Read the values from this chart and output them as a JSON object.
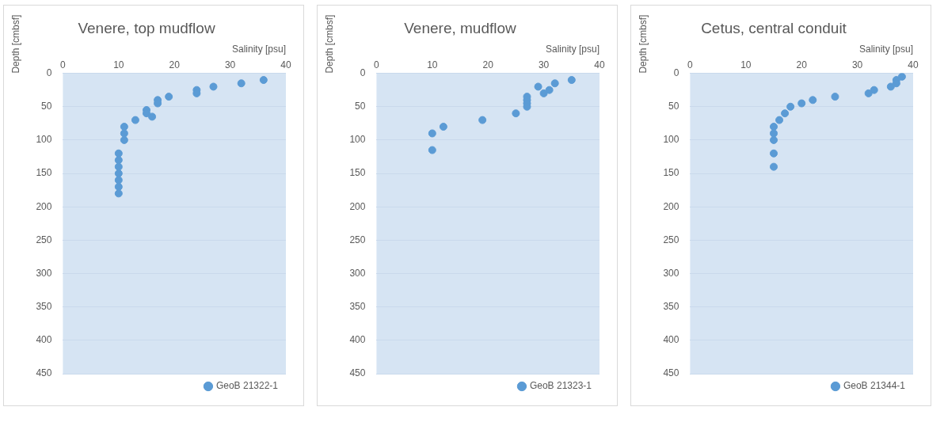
{
  "chart_data": [
    {
      "type": "scatter",
      "title": "Venere, top mudflow",
      "xlabel": "Salinity [psu]",
      "ylabel": "Depth [cmbsf]",
      "xlim": [
        0,
        40
      ],
      "xticks": [
        0,
        10,
        20,
        30,
        40
      ],
      "ylim": [
        450,
        0
      ],
      "yticks": [
        0,
        50,
        100,
        150,
        200,
        250,
        300,
        350,
        400,
        450
      ],
      "grid": "y",
      "legend": "bottom right",
      "marker": "circle",
      "series": [
        {
          "name": "GeoB 21322-1",
          "color": "#5b9bd5",
          "x": [
            36,
            32,
            27,
            24,
            24,
            19,
            17,
            17,
            15,
            15,
            16,
            13,
            11,
            11,
            11,
            10,
            10,
            10,
            10,
            10,
            10,
            10
          ],
          "values": [
            10,
            15,
            20,
            25,
            30,
            35,
            40,
            45,
            55,
            60,
            65,
            70,
            80,
            90,
            100,
            120,
            130,
            140,
            150,
            160,
            170,
            180
          ]
        }
      ]
    },
    {
      "type": "scatter",
      "title": "Venere, mudflow",
      "xlabel": "Salinity [psu]",
      "ylabel": "Depth [cmbsf]",
      "xlim": [
        0,
        40
      ],
      "xticks": [
        0,
        10,
        20,
        30,
        40
      ],
      "ylim": [
        450,
        0
      ],
      "yticks": [
        0,
        50,
        100,
        150,
        200,
        250,
        300,
        350,
        400,
        450
      ],
      "grid": "y",
      "legend": "bottom right",
      "marker": "circle",
      "series": [
        {
          "name": "GeoB 21323-1",
          "color": "#5b9bd5",
          "x": [
            35,
            32,
            29,
            31,
            30,
            27,
            27,
            27,
            27,
            25,
            19,
            12,
            10,
            10
          ],
          "values": [
            10,
            15,
            20,
            25,
            30,
            35,
            40,
            45,
            50,
            60,
            70,
            80,
            90,
            115
          ]
        }
      ]
    },
    {
      "type": "scatter",
      "title": "Cetus, central conduit",
      "xlabel": "Salinity [psu]",
      "ylabel": "Depth [cmbsf]",
      "xlim": [
        0,
        40
      ],
      "xticks": [
        0,
        10,
        20,
        30,
        40
      ],
      "ylim": [
        450,
        0
      ],
      "yticks": [
        0,
        50,
        100,
        150,
        200,
        250,
        300,
        350,
        400,
        450
      ],
      "grid": "y",
      "legend": "bottom right",
      "marker": "circle",
      "series": [
        {
          "name": "GeoB 21344-1",
          "color": "#5b9bd5",
          "x": [
            38,
            37,
            37,
            36,
            33,
            32,
            26,
            22,
            20,
            18,
            17,
            16,
            15,
            15,
            15,
            15,
            15
          ],
          "values": [
            5,
            10,
            15,
            20,
            25,
            30,
            35,
            40,
            45,
            50,
            60,
            70,
            80,
            90,
            100,
            120,
            140
          ]
        }
      ]
    }
  ]
}
